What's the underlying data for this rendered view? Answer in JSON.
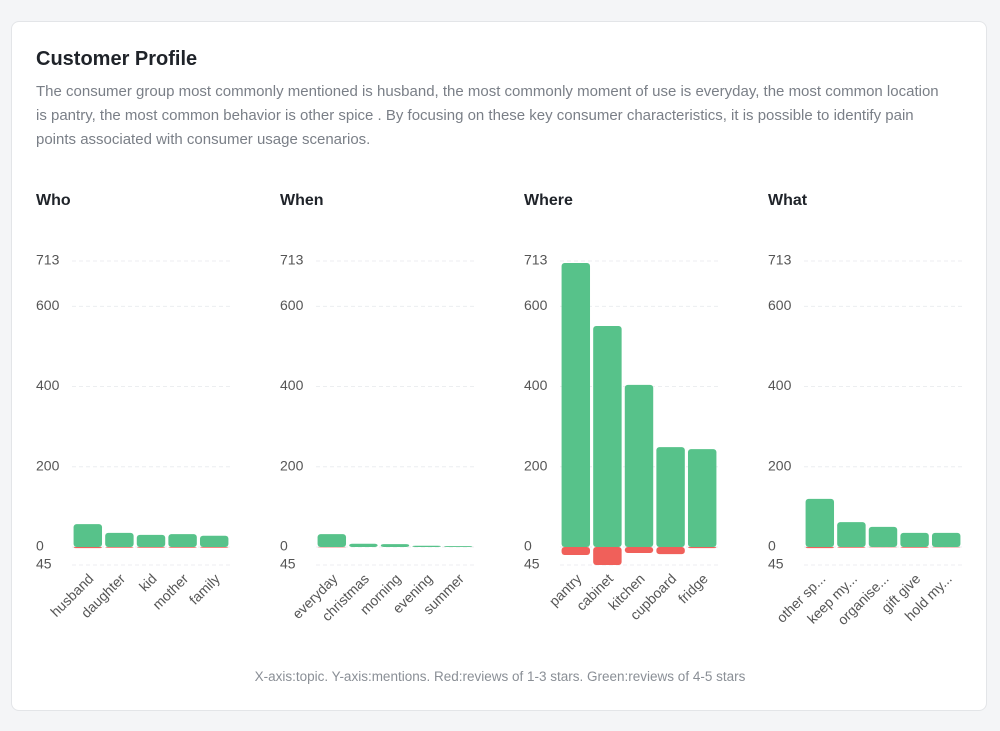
{
  "header": {
    "title": "Customer Profile",
    "description": "The consumer group most commonly mentioned is husband, the most commonly moment of use is everyday, the most common location is pantry, the most common behavior is other spice . By focusing on these key consumer characteristics, it is possible to identify pain points associated with consumer usage scenarios."
  },
  "footer": "X-axis:topic. Y-axis:mentions. Red:reviews of 1-3 stars. Green:reviews of 4-5 stars",
  "chart_data": [
    {
      "type": "bar",
      "title": "Who",
      "categories": [
        "husband",
        "daughter",
        "kid",
        "mother",
        "family"
      ],
      "series": [
        {
          "color": "#57c28a",
          "values": [
            57,
            35,
            30,
            32,
            28
          ]
        },
        {
          "color": "#f0605a",
          "values": [
            -3,
            -2,
            -2,
            -2,
            -2
          ]
        }
      ],
      "ylim": [
        -45,
        713
      ],
      "yticks": [
        {
          "value": -45,
          "label": "45"
        },
        0,
        200,
        400,
        600,
        713
      ],
      "grid": true
    },
    {
      "type": "bar",
      "title": "When",
      "categories": [
        "everyday",
        "christmas",
        "morning",
        "evening",
        "summer"
      ],
      "series": [
        {
          "color": "#57c28a",
          "values": [
            32,
            8,
            7,
            3,
            2
          ]
        },
        {
          "color": "#f0605a",
          "values": [
            -1,
            0,
            0,
            0,
            0
          ]
        }
      ],
      "ylim": [
        -45,
        713
      ],
      "yticks": [
        {
          "value": -45,
          "label": "45"
        },
        0,
        200,
        400,
        600,
        713
      ],
      "grid": true
    },
    {
      "type": "bar",
      "title": "Where",
      "categories": [
        "pantry",
        "cabinet",
        "kitchen",
        "cupboard",
        "fridge"
      ],
      "series": [
        {
          "color": "#57c28a",
          "values": [
            708,
            551,
            404,
            249,
            244
          ]
        },
        {
          "color": "#f0605a",
          "values": [
            -20,
            -45,
            -15,
            -18,
            -3
          ]
        }
      ],
      "ylim": [
        -45,
        713
      ],
      "yticks": [
        {
          "value": -45,
          "label": "45"
        },
        0,
        200,
        400,
        600,
        713
      ],
      "grid": true
    },
    {
      "type": "bar",
      "title": "What",
      "categories": [
        "other sp...",
        "keep my...",
        "organise...",
        "gift give",
        "hold my..."
      ],
      "series": [
        {
          "color": "#57c28a",
          "values": [
            120,
            62,
            50,
            35,
            35
          ]
        },
        {
          "color": "#f0605a",
          "values": [
            -3,
            -2,
            -1,
            -2,
            -1
          ]
        }
      ],
      "ylim": [
        -45,
        713
      ],
      "yticks": [
        {
          "value": -45,
          "label": "45"
        },
        0,
        200,
        400,
        600,
        713
      ],
      "grid": true
    }
  ]
}
